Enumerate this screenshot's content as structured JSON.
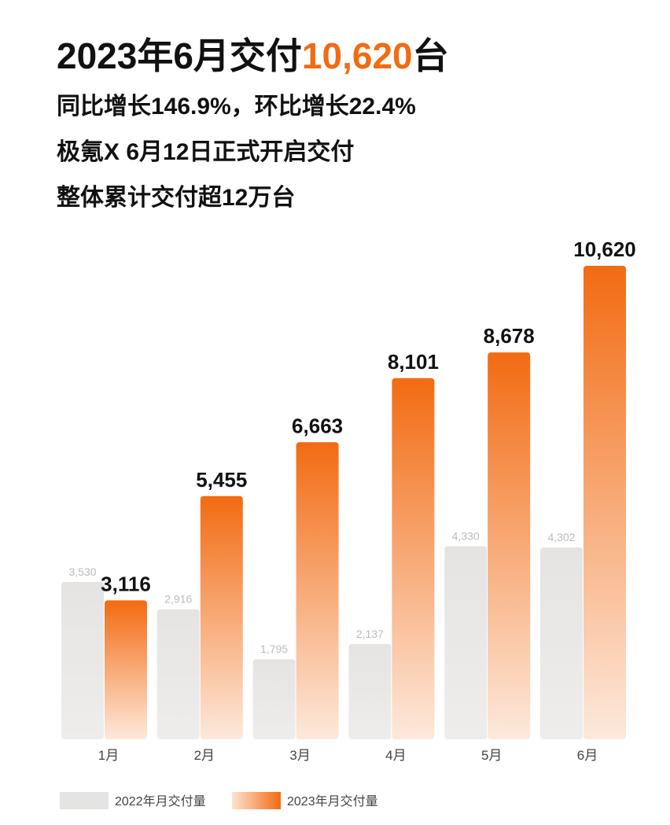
{
  "chart_data": {
    "type": "bar",
    "title": {
      "before": "2023年6月交付",
      "highlight": "10,620",
      "after": "台"
    },
    "subtitles": [
      "同比增长146.9%，环比增长22.4%",
      "极氪X 6月12日正式开启交付",
      "整体累计交付超12万台"
    ],
    "categories": [
      "1月",
      "2月",
      "3月",
      "4月",
      "5月",
      "6月"
    ],
    "series": [
      {
        "name": "2022年月交付量",
        "color": "#e6e4e2",
        "values": [
          3530,
          2916,
          1795,
          2137,
          4330,
          4302
        ],
        "value_labels": [
          "3,530",
          "2,916",
          "1,795",
          "2,137",
          "4,330",
          "4,302"
        ]
      },
      {
        "name": "2023年月交付量",
        "color": "#f26b12",
        "values": [
          3116,
          5455,
          6663,
          8101,
          8678,
          10620
        ],
        "value_labels": [
          "3,116",
          "5,455",
          "6,663",
          "8,101",
          "8,678",
          "10,620"
        ]
      }
    ],
    "ylim": [
      0,
      10620
    ],
    "grid": false
  }
}
